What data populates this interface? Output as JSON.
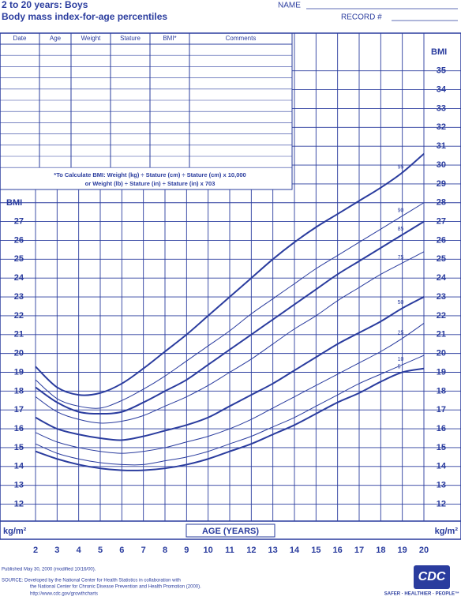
{
  "header": {
    "title": "2 to 20 years: Boys",
    "subtitle": "Body mass index-for-age percentiles",
    "name_label": "NAME",
    "record_label": "RECORD #"
  },
  "record_table": {
    "columns": [
      "Date",
      "Age",
      "Weight",
      "Stature",
      "BMI*",
      "Comments"
    ],
    "note": [
      "*To Calculate BMI: Weight (kg) ÷ Stature (cm) ÷ Stature (cm) x 10,000",
      "or Weight (lb) ÷ Stature (in) ÷ Stature (in) x 703"
    ]
  },
  "chart_data": {
    "type": "line",
    "color": "#2a3c9e",
    "x_label": "AGE (YEARS)",
    "y_label": "BMI",
    "y_unit": "kg/m²",
    "x": [
      2,
      3,
      4,
      5,
      6,
      7,
      8,
      9,
      10,
      11,
      12,
      13,
      14,
      15,
      16,
      17,
      18,
      19,
      20
    ],
    "series": [
      {
        "name": "95",
        "line_width": 2,
        "values": [
          19.3,
          18.2,
          17.8,
          17.9,
          18.4,
          19.2,
          20.1,
          21.0,
          22.0,
          23.0,
          24.0,
          25.0,
          25.9,
          26.7,
          27.4,
          28.1,
          28.8,
          29.6,
          30.6
        ]
      },
      {
        "name": "90",
        "line_width": 1,
        "values": [
          18.6,
          17.6,
          17.2,
          17.1,
          17.5,
          18.1,
          18.8,
          19.6,
          20.4,
          21.2,
          22.1,
          22.9,
          23.7,
          24.5,
          25.2,
          25.9,
          26.6,
          27.3,
          28.0
        ]
      },
      {
        "name": "85",
        "line_width": 2,
        "values": [
          18.2,
          17.4,
          16.9,
          16.8,
          16.9,
          17.4,
          18.0,
          18.6,
          19.4,
          20.2,
          21.0,
          21.8,
          22.6,
          23.4,
          24.2,
          24.9,
          25.6,
          26.3,
          27.0
        ]
      },
      {
        "name": "75",
        "line_width": 1,
        "values": [
          17.7,
          16.9,
          16.5,
          16.3,
          16.4,
          16.7,
          17.2,
          17.7,
          18.3,
          19.0,
          19.7,
          20.5,
          21.3,
          22.0,
          22.8,
          23.5,
          24.2,
          24.8,
          25.4
        ]
      },
      {
        "name": "50",
        "line_width": 2,
        "values": [
          16.6,
          16.0,
          15.7,
          15.5,
          15.4,
          15.6,
          15.9,
          16.2,
          16.6,
          17.2,
          17.8,
          18.4,
          19.1,
          19.8,
          20.5,
          21.1,
          21.7,
          22.4,
          23.0
        ]
      },
      {
        "name": "25",
        "line_width": 1,
        "values": [
          15.8,
          15.3,
          15.0,
          14.8,
          14.7,
          14.8,
          15.0,
          15.3,
          15.6,
          16.0,
          16.5,
          17.1,
          17.7,
          18.3,
          18.9,
          19.5,
          20.1,
          20.8,
          21.6
        ]
      },
      {
        "name": "10",
        "line_width": 1,
        "values": [
          15.2,
          14.7,
          14.4,
          14.2,
          14.1,
          14.1,
          14.3,
          14.5,
          14.8,
          15.2,
          15.6,
          16.1,
          16.6,
          17.2,
          17.8,
          18.4,
          18.9,
          19.4,
          19.9
        ]
      },
      {
        "name": "5",
        "line_width": 2,
        "values": [
          14.8,
          14.4,
          14.1,
          13.9,
          13.8,
          13.8,
          13.9,
          14.1,
          14.4,
          14.8,
          15.2,
          15.7,
          16.2,
          16.8,
          17.4,
          17.9,
          18.5,
          19.0,
          19.2
        ]
      }
    ],
    "xlim": [
      2,
      20
    ],
    "ylim": [
      11.1,
      37
    ],
    "xticks": [
      2,
      3,
      4,
      5,
      6,
      7,
      8,
      9,
      10,
      11,
      12,
      13,
      14,
      15,
      16,
      17,
      18,
      19,
      20
    ],
    "yticks": [
      12,
      13,
      14,
      15,
      16,
      17,
      18,
      19,
      20,
      21,
      22,
      23,
      24,
      25,
      26,
      27,
      28,
      29,
      30,
      31,
      32,
      33,
      34,
      35
    ],
    "grid": true
  },
  "footer": {
    "published": "Published May 30, 2000 (modified 10/16/00).",
    "source": [
      "SOURCE: Developed by the National Center for Health Statistics in collaboration with",
      "the National Center for Chronic Disease Prevention and Health Promotion (2000).",
      "http://www.cdc.gov/growthcharts"
    ],
    "logo": "CDC",
    "slogan": "SAFER · HEALTHIER · PEOPLE™"
  }
}
